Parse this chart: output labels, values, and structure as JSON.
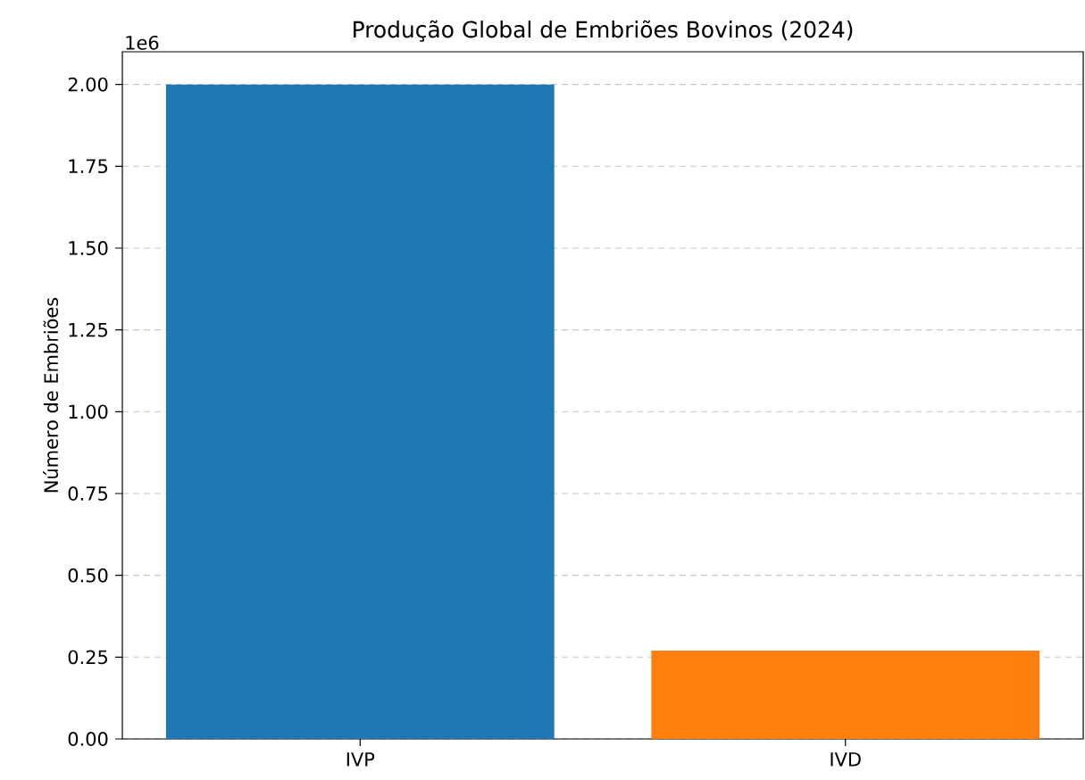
{
  "chart_data": {
    "type": "bar",
    "title": "Produção Global de Embriões Bovinos (2024)",
    "ylabel": "Número de Embriões",
    "categories": [
      "IVP",
      "IVD"
    ],
    "values": [
      2.0,
      0.27
    ],
    "colors": [
      "#1f77b4",
      "#ff7f0e"
    ],
    "ylim": [
      0,
      2.1
    ],
    "yticks": [
      {
        "value": 0,
        "label": "0.00"
      },
      {
        "value": 0.25,
        "label": "0.25"
      },
      {
        "value": 0.5,
        "label": "0.50"
      },
      {
        "value": 0.75,
        "label": "0.75"
      },
      {
        "value": 1,
        "label": "1.00"
      },
      {
        "value": 1.25,
        "label": "1.25"
      },
      {
        "value": 1.5,
        "label": "1.50"
      },
      {
        "value": 1.75,
        "label": "1.75"
      },
      {
        "value": 2,
        "label": "2.00"
      }
    ],
    "grid": "y",
    "annotations": [
      "1e6"
    ]
  }
}
